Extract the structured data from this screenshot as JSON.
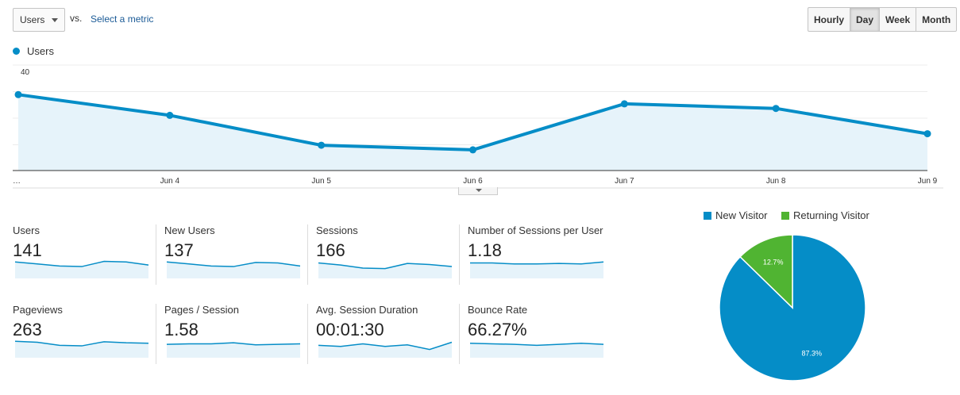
{
  "toolbar": {
    "metric_select": "Users",
    "vs_label": "vs.",
    "select_metric_link": "Select a metric",
    "periods": [
      "Hourly",
      "Day",
      "Week",
      "Month"
    ],
    "active_period": "Day"
  },
  "chart_data": [
    {
      "type": "line",
      "series": [
        {
          "name": "Users",
          "values": [
            33,
            24,
            11,
            9,
            29,
            27,
            16
          ]
        }
      ],
      "categories": [
        "…",
        "Jun 4",
        "Jun 5",
        "Jun 6",
        "Jun 7",
        "Jun 8",
        "Jun 9"
      ],
      "y_ticks": [
        "40",
        "20"
      ],
      "ylim": [
        0,
        40
      ],
      "color": "#058dc7",
      "fill": "#e6f3fa",
      "grid": true
    },
    {
      "type": "pie",
      "categories": [
        "New Visitor",
        "Returning Visitor"
      ],
      "values": [
        87.3,
        12.7
      ],
      "labels": [
        "87.3%",
        "12.7%"
      ],
      "colors": [
        "#058dc7",
        "#50b432"
      ],
      "legend": "top"
    }
  ],
  "scorecards": [
    {
      "label": "Users",
      "value": "141",
      "spark": [
        32,
        28,
        24,
        23,
        33,
        32,
        26
      ]
    },
    {
      "label": "New Users",
      "value": "137",
      "spark": [
        32,
        28,
        24,
        23,
        31,
        30,
        24
      ]
    },
    {
      "label": "Sessions",
      "value": "166",
      "spark": [
        30,
        26,
        20,
        19,
        29,
        27,
        23
      ]
    },
    {
      "label": "Number of Sessions per User",
      "value": "1.18",
      "spark": [
        30,
        30,
        28,
        28,
        29,
        28,
        32
      ]
    },
    {
      "label": "Pageviews",
      "value": "263",
      "spark": [
        32,
        30,
        24,
        23,
        31,
        29,
        28
      ]
    },
    {
      "label": "Pages / Session",
      "value": "1.58",
      "spark": [
        26,
        27,
        27,
        29,
        25,
        26,
        27
      ]
    },
    {
      "label": "Avg. Session Duration",
      "value": "00:01:30",
      "spark": [
        24,
        22,
        27,
        22,
        25,
        16,
        30
      ]
    },
    {
      "label": "Bounce Rate",
      "value": "66.27%",
      "spark": [
        28,
        27,
        26,
        24,
        26,
        28,
        26
      ]
    }
  ],
  "colors": {
    "primary": "#058dc7",
    "secondary": "#50b432",
    "spark_fill": "#e6f3fa"
  }
}
